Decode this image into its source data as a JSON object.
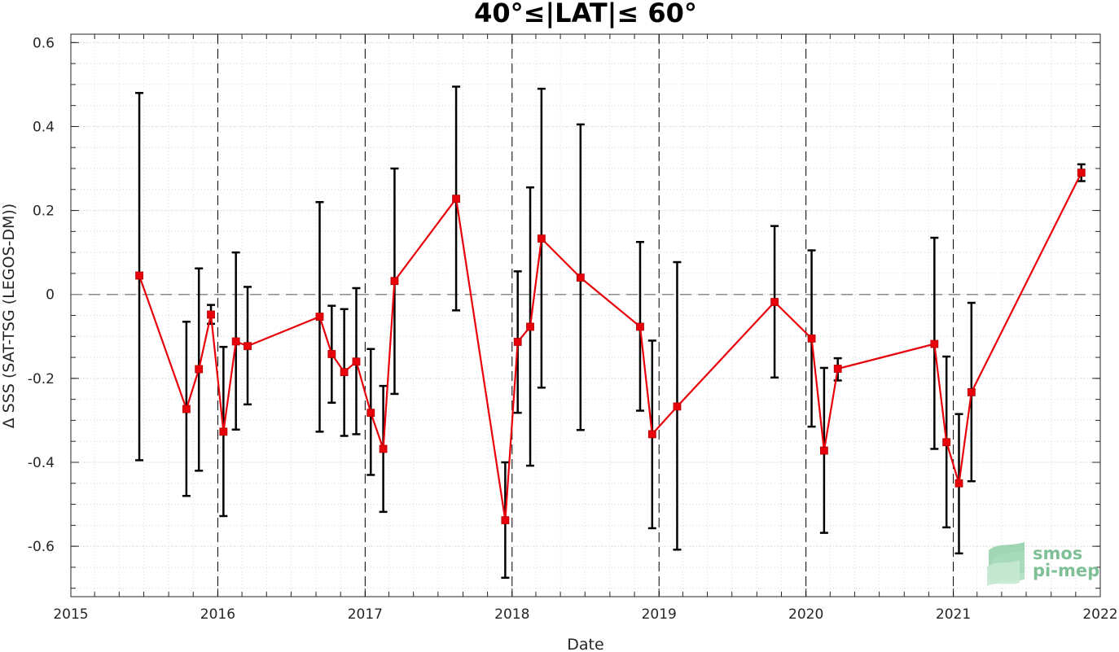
{
  "chart_data": {
    "type": "line",
    "title": "40°≤|LAT|≤ 60°",
    "xlabel": "Date",
    "ylabel": "Δ SSS (SAT-TSG (LEGOS-DM))",
    "xlim": [
      "2015-01-01",
      "2022-01-01"
    ],
    "ylim": [
      -0.72,
      0.62
    ],
    "x_ticks": [
      "2015",
      "2016",
      "2017",
      "2018",
      "2019",
      "2020",
      "2021",
      "2022"
    ],
    "y_ticks": [
      "0.6",
      "0.4",
      "0.2",
      "0",
      "-0.2",
      "-0.4",
      "-0.6"
    ],
    "grid": true,
    "zero_line": true,
    "year_boundary_lines": [
      "2016-01-01",
      "2017-01-01",
      "2018-01-01",
      "2019-01-01",
      "2020-01-01",
      "2021-01-01"
    ],
    "colors": {
      "series": "#e8000b",
      "error_bars": "#000000",
      "zero_line": "#8c8c8c",
      "grid": "#d9d9d9"
    },
    "series": [
      {
        "points": [
          {
            "x": "2015-06-20",
            "y": 0.045,
            "low": -0.395,
            "high": 0.48
          },
          {
            "x": "2015-10-15",
            "y": -0.273,
            "low": -0.48,
            "high": -0.065
          },
          {
            "x": "2015-11-15",
            "y": -0.178,
            "low": -0.42,
            "high": 0.062
          },
          {
            "x": "2015-12-15",
            "y": -0.048,
            "low": -0.07,
            "high": -0.025
          },
          {
            "x": "2016-01-15",
            "y": -0.327,
            "low": -0.528,
            "high": -0.125
          },
          {
            "x": "2016-02-15",
            "y": -0.112,
            "low": -0.322,
            "high": 0.1
          },
          {
            "x": "2016-03-15",
            "y": -0.123,
            "low": -0.262,
            "high": 0.018
          },
          {
            "x": "2016-09-10",
            "y": -0.053,
            "low": -0.327,
            "high": 0.22
          },
          {
            "x": "2016-10-10",
            "y": -0.142,
            "low": -0.258,
            "high": -0.027
          },
          {
            "x": "2016-11-10",
            "y": -0.185,
            "low": -0.337,
            "high": -0.035
          },
          {
            "x": "2016-12-10",
            "y": -0.16,
            "low": -0.333,
            "high": 0.015
          },
          {
            "x": "2017-01-15",
            "y": -0.282,
            "low": -0.43,
            "high": -0.13
          },
          {
            "x": "2017-02-15",
            "y": -0.368,
            "low": -0.518,
            "high": -0.218
          },
          {
            "x": "2017-03-15",
            "y": 0.032,
            "low": -0.237,
            "high": 0.3
          },
          {
            "x": "2017-08-15",
            "y": 0.228,
            "low": -0.038,
            "high": 0.495
          },
          {
            "x": "2017-12-15",
            "y": -0.538,
            "low": -0.675,
            "high": -0.4
          },
          {
            "x": "2018-01-15",
            "y": -0.113,
            "low": -0.282,
            "high": 0.055
          },
          {
            "x": "2018-02-15",
            "y": -0.077,
            "low": -0.408,
            "high": 0.255
          },
          {
            "x": "2018-03-15",
            "y": 0.133,
            "low": -0.222,
            "high": 0.49
          },
          {
            "x": "2018-06-20",
            "y": 0.04,
            "low": -0.323,
            "high": 0.405
          },
          {
            "x": "2018-11-15",
            "y": -0.077,
            "low": -0.277,
            "high": 0.125
          },
          {
            "x": "2018-12-15",
            "y": -0.333,
            "low": -0.557,
            "high": -0.11
          },
          {
            "x": "2019-02-15",
            "y": -0.267,
            "low": -0.608,
            "high": 0.077
          },
          {
            "x": "2019-10-15",
            "y": -0.018,
            "low": -0.198,
            "high": 0.163
          },
          {
            "x": "2020-01-15",
            "y": -0.105,
            "low": -0.315,
            "high": 0.105
          },
          {
            "x": "2020-02-15",
            "y": -0.372,
            "low": -0.568,
            "high": -0.175
          },
          {
            "x": "2020-03-20",
            "y": -0.177,
            "low": -0.205,
            "high": -0.152
          },
          {
            "x": "2020-11-15",
            "y": -0.118,
            "low": -0.368,
            "high": 0.135
          },
          {
            "x": "2020-12-15",
            "y": -0.352,
            "low": -0.555,
            "high": -0.148
          },
          {
            "x": "2021-01-15",
            "y": -0.45,
            "low": -0.617,
            "high": -0.285
          },
          {
            "x": "2021-02-15",
            "y": -0.233,
            "low": -0.445,
            "high": -0.02
          },
          {
            "x": "2021-11-15",
            "y": 0.29,
            "low": 0.27,
            "high": 0.31
          }
        ]
      }
    ]
  },
  "logo": {
    "line1": "smos",
    "line2": "pi-mep"
  }
}
